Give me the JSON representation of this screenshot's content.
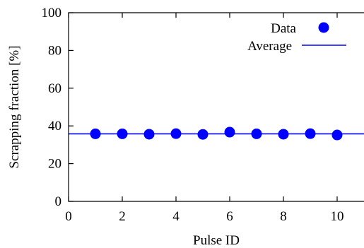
{
  "chart_data": {
    "type": "scatter",
    "title": "",
    "xlabel": "Pulse ID",
    "ylabel": "Scrapping fraction [%]",
    "xlim": [
      0,
      11
    ],
    "ylim": [
      0,
      100
    ],
    "x_ticks": [
      0,
      2,
      4,
      6,
      8,
      10
    ],
    "y_ticks": [
      0,
      20,
      40,
      60,
      80,
      100
    ],
    "grid": false,
    "legend_position": "top-right",
    "series": [
      {
        "name": "Data",
        "type": "scatter",
        "color": "#0000ff",
        "x": [
          1,
          2,
          3,
          4,
          5,
          6,
          7,
          8,
          9,
          10
        ],
        "y": [
          35.8,
          35.8,
          35.6,
          35.9,
          35.5,
          36.7,
          35.8,
          35.6,
          35.9,
          35.2
        ]
      },
      {
        "name": "Average",
        "type": "line",
        "color": "#0000ff",
        "value": 35.8
      }
    ]
  }
}
